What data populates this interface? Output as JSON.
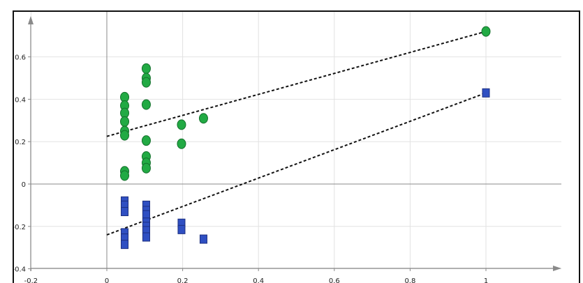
{
  "chart_data": {
    "type": "scatter",
    "title": "",
    "xlabel": "",
    "ylabel": "",
    "xlim": [
      -0.2,
      1.2
    ],
    "ylim": [
      -0.4,
      0.75
    ],
    "grid": true,
    "x_ticks": [
      -0.2,
      0,
      0.2,
      0.4,
      0.6,
      0.8,
      1
    ],
    "x_tick_labels": [
      "-0.2",
      "0",
      "0.2",
      "0.4",
      "0.6",
      "0.8",
      "1"
    ],
    "y_ticks": [
      -0.4,
      -0.2,
      0,
      0.2,
      0.4,
      0.6
    ],
    "y_tick_labels": [
      "-0.4",
      "-0.2",
      "0",
      "0.2",
      "0.4",
      "0.6"
    ],
    "series": [
      {
        "marker": "circle",
        "color": "#22aa44",
        "points": [
          [
            0.047,
            0.41
          ],
          [
            0.047,
            0.37
          ],
          [
            0.047,
            0.335
          ],
          [
            0.047,
            0.295
          ],
          [
            0.047,
            0.25
          ],
          [
            0.047,
            0.23
          ],
          [
            0.047,
            0.06
          ],
          [
            0.047,
            0.04
          ],
          [
            0.104,
            0.545
          ],
          [
            0.104,
            0.5
          ],
          [
            0.104,
            0.48
          ],
          [
            0.104,
            0.375
          ],
          [
            0.104,
            0.205
          ],
          [
            0.104,
            0.13
          ],
          [
            0.104,
            0.1
          ],
          [
            0.104,
            0.075
          ],
          [
            0.197,
            0.28
          ],
          [
            0.197,
            0.19
          ],
          [
            0.255,
            0.31
          ],
          [
            1.0,
            0.72
          ]
        ],
        "trend": {
          "x": [
            0,
            1
          ],
          "y": [
            0.225,
            0.72
          ]
        }
      },
      {
        "marker": "square",
        "color": "#2f4fc2",
        "points": [
          [
            0.047,
            -0.08
          ],
          [
            0.047,
            -0.1
          ],
          [
            0.047,
            -0.13
          ],
          [
            0.047,
            -0.23
          ],
          [
            0.047,
            -0.255
          ],
          [
            0.047,
            -0.285
          ],
          [
            0.104,
            -0.1
          ],
          [
            0.104,
            -0.125
          ],
          [
            0.104,
            -0.145
          ],
          [
            0.104,
            -0.18
          ],
          [
            0.104,
            -0.2
          ],
          [
            0.104,
            -0.22
          ],
          [
            0.104,
            -0.25
          ],
          [
            0.197,
            -0.185
          ],
          [
            0.197,
            -0.215
          ],
          [
            0.255,
            -0.26
          ],
          [
            1.0,
            0.43
          ]
        ],
        "trend": {
          "x": [
            0,
            1
          ],
          "y": [
            -0.24,
            0.43
          ]
        }
      }
    ]
  }
}
